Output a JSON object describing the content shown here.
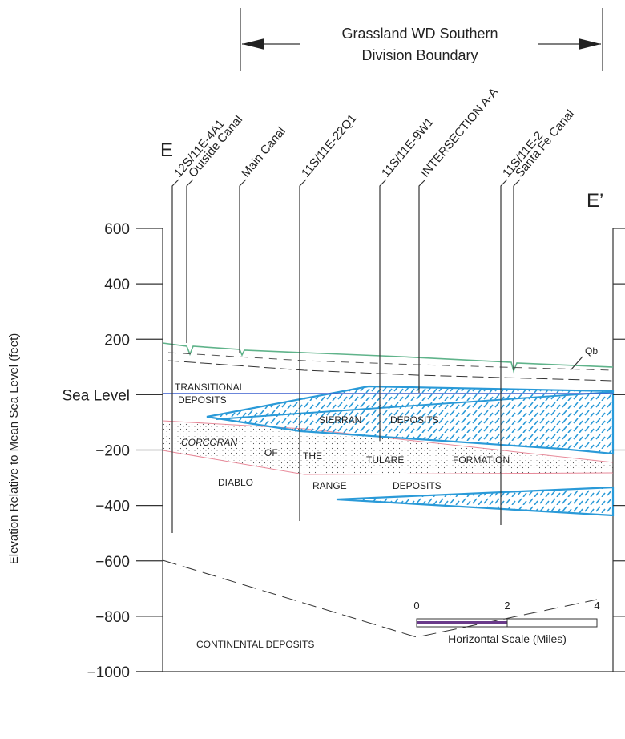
{
  "header": {
    "title_line1": "Grassland WD Southern",
    "title_line2": "Division Boundary"
  },
  "section_ends": {
    "left": "E",
    "right": "E’"
  },
  "wells": [
    "12S/11E-4A1",
    "Outside Canal",
    "Main Canal",
    "11S/11E-22Q1",
    "11S/11E-9W1",
    "INTERSECTION A-A",
    "11S/11E-2",
    "Santa Fe Canal"
  ],
  "y_axis": {
    "title": "Elevation Relative to Mean Sea Level (feet)",
    "ticks": [
      "600",
      "400",
      "200",
      "Sea Level",
      "−200",
      "−400",
      "−600",
      "−800",
      "−1000"
    ]
  },
  "units": {
    "qb": "Qb",
    "transitional": "TRANSITIONAL",
    "transitional_2": "DEPOSITS",
    "sierran": "SIERRAN",
    "sierran_2": "DEPOSITS",
    "corcoran": "CORCORAN",
    "of": "OF",
    "the": "THE",
    "tulare": "TULARE",
    "formation": "FORMATION",
    "diablo": "DIABLO",
    "range": "RANGE",
    "range_2": "DEPOSITS",
    "continental": "CONTINENTAL DEPOSITS"
  },
  "scale": {
    "labels": [
      "0",
      "2",
      "4"
    ],
    "title": "Horizontal Scale (Miles)"
  }
}
